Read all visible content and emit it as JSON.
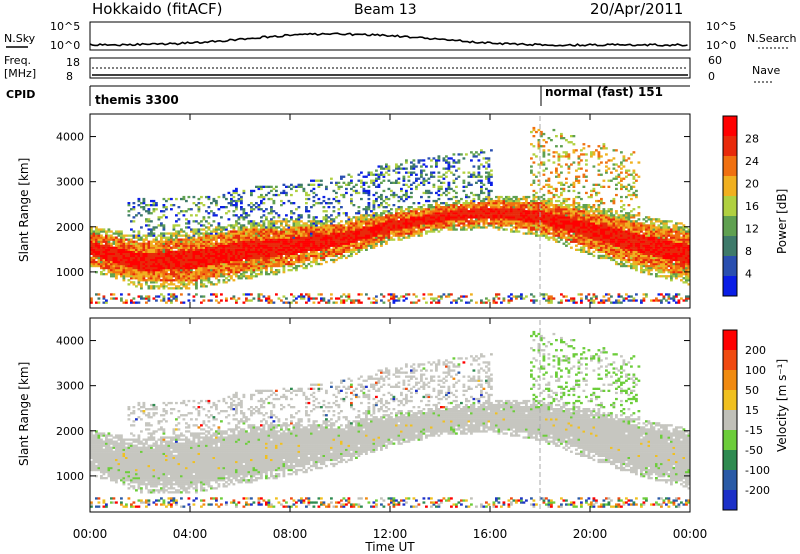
{
  "header": {
    "title": "Hokkaido (fitACF)",
    "beam": "Beam 13",
    "date": "20/Apr/2011"
  },
  "top_panels": {
    "nsky_label": "N.Sky",
    "nsky_ticks": [
      "10^5",
      "10^0"
    ],
    "nsearch_label": "N.Search",
    "freq_label_1": "Freq.",
    "freq_label_2": "[MHz]",
    "freq_ticks": [
      "18",
      "8"
    ],
    "nave_ticks": [
      "60",
      "0"
    ],
    "nave_label": "Nave",
    "cpid_label": "CPID",
    "cpid_left": "themis 3300",
    "cpid_right": "normal (fast) 151"
  },
  "colors": {
    "power": [
      "#0a1ee6",
      "#2a4fb0",
      "#3e7a6a",
      "#5fa050",
      "#b0d040",
      "#f0b020",
      "#f07010",
      "#e82a0a",
      "#ff0000"
    ],
    "velocity": [
      "#1c30c8",
      "#2a5aa6",
      "#2e8a50",
      "#6ccd3a",
      "#c0c0b8",
      "#f0c020",
      "#f08a10",
      "#f04a10",
      "#ff0000"
    ],
    "scatter_grey": "#c6c6c0"
  },
  "chart_data": [
    {
      "type": "heatmap",
      "name": "power",
      "ylabel": "Slant Range [km]",
      "xlabel": "Time UT",
      "x_ticks": [
        "00:00",
        "04:00",
        "08:00",
        "12:00",
        "16:00",
        "20:00",
        "00:00"
      ],
      "y_ticks": [
        1000,
        2000,
        3000,
        4000
      ],
      "ylim": [
        200,
        4500
      ],
      "colorbar_label": "Power [dB]",
      "colorbar_ticks": [
        "28",
        "24",
        "20",
        "16",
        "12",
        "8",
        "4"
      ],
      "main_echo_band": {
        "hours": [
          0,
          2,
          4,
          6,
          8,
          10,
          12,
          14,
          16,
          18,
          20,
          22,
          24
        ],
        "range_km": [
          1500,
          1200,
          1250,
          1450,
          1550,
          1700,
          2000,
          2200,
          2300,
          2200,
          1900,
          1600,
          1350
        ]
      }
    },
    {
      "type": "heatmap",
      "name": "velocity",
      "ylabel": "Slant Range [km]",
      "xlabel": "Time UT",
      "x_ticks": [
        "00:00",
        "04:00",
        "08:00",
        "12:00",
        "16:00",
        "20:00",
        "00:00"
      ],
      "y_ticks": [
        1000,
        2000,
        3000,
        4000
      ],
      "ylim": [
        200,
        4500
      ],
      "colorbar_label": "Velocity [m s⁻¹]",
      "colorbar_ticks": [
        "200",
        "100",
        "50",
        "15",
        "-15",
        "-50",
        "-100",
        "-200"
      ]
    }
  ],
  "axis": {
    "xlabel": "Time UT"
  }
}
